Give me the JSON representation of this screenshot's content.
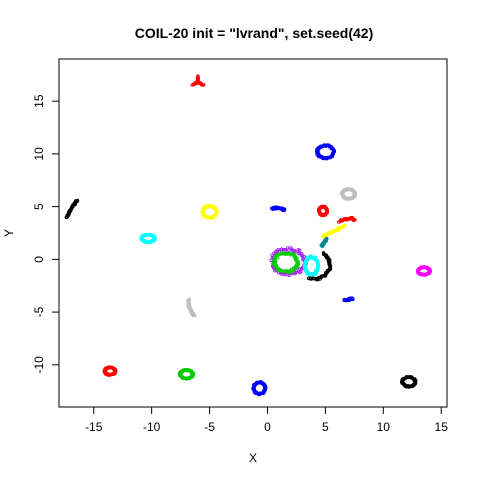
{
  "chart_data": {
    "type": "scatter",
    "title": "COIL-20 init = \"lvrand\", set.seed(42)",
    "xlabel": "X",
    "ylabel": "Y",
    "xlim": [
      -18,
      15.5
    ],
    "ylim": [
      -14,
      19
    ],
    "xticks": [
      -15,
      -10,
      -5,
      0,
      5,
      10,
      15
    ],
    "yticks": [
      -10,
      -5,
      0,
      5,
      10,
      15
    ],
    "grid": false,
    "legend": "none",
    "clusters": [
      {
        "shape": "ring",
        "color": "#0000ff",
        "center": [
          5.0,
          10.2
        ],
        "radius": [
          0.7,
          0.6
        ]
      },
      {
        "shape": "tripod",
        "color": "#ff0000",
        "center": [
          -6.0,
          16.8
        ],
        "radius": [
          0.6,
          0.6
        ]
      },
      {
        "shape": "arc",
        "color": "#000000",
        "center": [
          -16.8,
          4.8
        ],
        "points": [
          [
            -17.3,
            4.0
          ],
          [
            -17.0,
            4.7
          ],
          [
            -16.7,
            5.2
          ],
          [
            -16.4,
            5.6
          ]
        ]
      },
      {
        "shape": "ring",
        "color": "#ffff00",
        "center": [
          -5.0,
          4.5
        ],
        "radius": [
          0.6,
          0.55
        ]
      },
      {
        "shape": "ring",
        "color": "#00ffff",
        "center": [
          -10.3,
          2.0
        ],
        "radius": [
          0.55,
          0.35
        ]
      },
      {
        "shape": "arc",
        "color": "#0000ff",
        "center": [
          0.8,
          4.8
        ],
        "points": [
          [
            0.4,
            4.8
          ],
          [
            0.8,
            4.9
          ],
          [
            1.2,
            4.8
          ],
          [
            1.5,
            4.7
          ]
        ]
      },
      {
        "shape": "ring",
        "color": "#ff0000",
        "center": [
          4.8,
          4.6
        ],
        "radius": [
          0.35,
          0.4
        ]
      },
      {
        "shape": "ring",
        "color": "#bebebe",
        "center": [
          7.0,
          6.2
        ],
        "radius": [
          0.55,
          0.45
        ]
      },
      {
        "shape": "arc",
        "color": "#ff0000",
        "center": [
          6.8,
          3.8
        ],
        "points": [
          [
            6.2,
            3.6
          ],
          [
            6.8,
            3.8
          ],
          [
            7.3,
            3.9
          ],
          [
            7.5,
            3.7
          ]
        ]
      },
      {
        "shape": "arc",
        "color": "#ffff00",
        "center": [
          5.5,
          2.7
        ],
        "points": [
          [
            4.8,
            2.2
          ],
          [
            5.4,
            2.5
          ],
          [
            6.0,
            2.8
          ],
          [
            6.7,
            3.2
          ]
        ]
      },
      {
        "shape": "arc",
        "color": "#00868b",
        "center": [
          5.0,
          1.6
        ],
        "points": [
          [
            4.7,
            1.3
          ],
          [
            4.9,
            1.6
          ],
          [
            5.1,
            2.0
          ]
        ]
      },
      {
        "shape": "ring",
        "color": "#ff00ff",
        "center": [
          13.5,
          -1.1
        ],
        "radius": [
          0.5,
          0.35
        ]
      },
      {
        "shape": "ring",
        "color": "#a020f0",
        "center": [
          1.8,
          -0.2
        ],
        "radius": [
          1.4,
          1.2
        ]
      },
      {
        "shape": "ring",
        "color": "#00cd00",
        "center": [
          1.6,
          -0.3
        ],
        "radius": [
          1.0,
          0.9
        ]
      },
      {
        "shape": "ring",
        "color": "#00ffff",
        "center": [
          3.8,
          -0.6
        ],
        "radius": [
          0.55,
          0.85
        ]
      },
      {
        "shape": "arc",
        "color": "#000000",
        "center": [
          4.4,
          -1.0
        ],
        "points": [
          [
            4.8,
            0.6
          ],
          [
            5.3,
            0.0
          ],
          [
            5.4,
            -0.8
          ],
          [
            5.0,
            -1.5
          ],
          [
            4.3,
            -1.9
          ],
          [
            3.5,
            -1.8
          ]
        ]
      },
      {
        "shape": "arc",
        "color": "#0000ff",
        "center": [
          7.0,
          -3.8
        ],
        "points": [
          [
            6.6,
            -3.9
          ],
          [
            7.0,
            -3.8
          ],
          [
            7.4,
            -3.7
          ]
        ]
      },
      {
        "shape": "arc",
        "color": "#bebebe",
        "center": [
          -6.7,
          -4.6
        ],
        "points": [
          [
            -6.8,
            -3.8
          ],
          [
            -6.8,
            -4.3
          ],
          [
            -6.6,
            -4.9
          ],
          [
            -6.3,
            -5.4
          ]
        ]
      },
      {
        "shape": "ring",
        "color": "#ff0000",
        "center": [
          -13.6,
          -10.6
        ],
        "radius": [
          0.45,
          0.35
        ]
      },
      {
        "shape": "ring",
        "color": "#00cd00",
        "center": [
          -7.0,
          -10.9
        ],
        "radius": [
          0.55,
          0.4
        ]
      },
      {
        "shape": "ring",
        "color": "#0000ff",
        "center": [
          -0.7,
          -12.2
        ],
        "radius": [
          0.5,
          0.55
        ]
      },
      {
        "shape": "ring",
        "color": "#000000",
        "center": [
          12.2,
          -11.6
        ],
        "radius": [
          0.55,
          0.45
        ]
      }
    ]
  }
}
